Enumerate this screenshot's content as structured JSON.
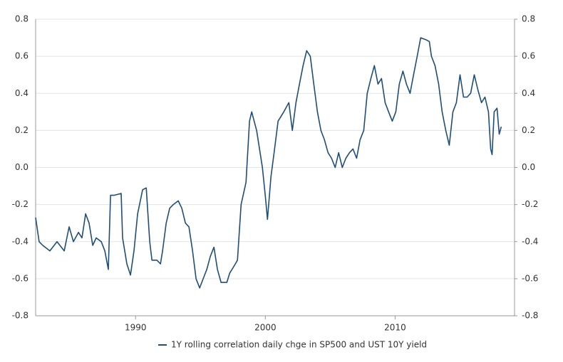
{
  "chart_data": {
    "type": "line",
    "x": [
      1982.3,
      1982.57,
      1982.85,
      1983.4,
      1983.95,
      1984.5,
      1984.88,
      1985.21,
      1985.6,
      1985.87,
      1986.15,
      1986.42,
      1986.7,
      1986.97,
      1987.36,
      1987.63,
      1987.9,
      1988.07,
      1988.34,
      1988.89,
      1989.0,
      1989.33,
      1989.61,
      1989.88,
      1990.16,
      1990.54,
      1990.82,
      1991.09,
      1991.26,
      1991.64,
      1991.92,
      1992.08,
      1992.36,
      1992.63,
      1992.91,
      1993.29,
      1993.56,
      1993.84,
      1994.11,
      1994.39,
      1994.66,
      1994.94,
      1995.21,
      1995.49,
      1995.76,
      1996.04,
      1996.31,
      1996.59,
      1997.03,
      1997.25,
      1997.69,
      1997.85,
      1998.13,
      1998.51,
      1998.78,
      1998.95,
      1999.33,
      1999.77,
      1999.99,
      2000.16,
      2000.43,
      2000.71,
      2000.98,
      2001.42,
      2001.81,
      2002.08,
      2002.36,
      2002.63,
      2002.91,
      2003.18,
      2003.46,
      2003.73,
      2004.01,
      2004.28,
      2004.55,
      2004.83,
      2005.1,
      2005.38,
      2005.65,
      2005.93,
      2006.2,
      2006.48,
      2006.75,
      2007.03,
      2007.3,
      2007.58,
      2007.85,
      2008.13,
      2008.4,
      2008.68,
      2008.95,
      2009.23,
      2009.5,
      2009.78,
      2010.05,
      2010.32,
      2010.6,
      2010.87,
      2011.15,
      2011.42,
      2011.7,
      2011.97,
      2012.36,
      2012.63,
      2012.8,
      2013.07,
      2013.35,
      2013.62,
      2013.9,
      2014.17,
      2014.45,
      2014.72,
      2015.0,
      2015.27,
      2015.55,
      2015.82,
      2016.1,
      2016.37,
      2016.65,
      2016.92,
      2017.19,
      2017.36,
      2017.47,
      2017.63,
      2017.85,
      2018.02,
      2018.18
    ],
    "series": [
      {
        "name": "1Y rolling correlation daily chge in SP500 and UST 10Y yield",
        "color": "#1f4e79",
        "values": [
          -0.27,
          -0.4,
          -0.42,
          -0.45,
          -0.4,
          -0.45,
          -0.32,
          -0.4,
          -0.35,
          -0.38,
          -0.25,
          -0.3,
          -0.42,
          -0.38,
          -0.4,
          -0.45,
          -0.55,
          -0.15,
          -0.15,
          -0.14,
          -0.38,
          -0.52,
          -0.58,
          -0.45,
          -0.25,
          -0.12,
          -0.11,
          -0.4,
          -0.5,
          -0.5,
          -0.52,
          -0.45,
          -0.3,
          -0.22,
          -0.2,
          -0.18,
          -0.22,
          -0.3,
          -0.32,
          -0.45,
          -0.6,
          -0.65,
          -0.6,
          -0.55,
          -0.48,
          -0.43,
          -0.55,
          -0.62,
          -0.62,
          -0.57,
          -0.52,
          -0.5,
          -0.2,
          -0.08,
          0.25,
          0.3,
          0.2,
          0.0,
          -0.15,
          -0.28,
          -0.05,
          0.1,
          0.25,
          0.3,
          0.35,
          0.2,
          0.35,
          0.45,
          0.55,
          0.63,
          0.6,
          0.45,
          0.3,
          0.2,
          0.15,
          0.08,
          0.05,
          0.0,
          0.08,
          0.0,
          0.05,
          0.08,
          0.1,
          0.05,
          0.15,
          0.2,
          0.4,
          0.48,
          0.55,
          0.45,
          0.48,
          0.35,
          0.3,
          0.25,
          0.3,
          0.45,
          0.52,
          0.45,
          0.4,
          0.5,
          0.6,
          0.7,
          0.69,
          0.68,
          0.6,
          0.55,
          0.45,
          0.3,
          0.2,
          0.12,
          0.3,
          0.35,
          0.5,
          0.38,
          0.38,
          0.4,
          0.5,
          0.42,
          0.35,
          0.38,
          0.3,
          0.1,
          0.07,
          0.3,
          0.32,
          0.18,
          0.22
        ]
      }
    ],
    "xlim": [
      1982.3,
      2019.2
    ],
    "xticks": [
      1990,
      2000,
      2010
    ],
    "ylim": [
      -0.8,
      0.8
    ],
    "yticks": [
      -0.8,
      -0.6,
      -0.4,
      -0.2,
      {
        "value": 0,
        "label": "0.0"
      },
      0.2,
      0.4,
      0.6,
      0.8
    ],
    "y2lim": [
      -0.8,
      0.8
    ],
    "y2ticks": [
      -0.8,
      -0.6,
      -0.4,
      -0.2,
      {
        "value": 0,
        "label": "0.0"
      },
      0.2,
      0.4,
      0.6,
      0.8
    ],
    "grid": true,
    "legend": "bottom"
  }
}
